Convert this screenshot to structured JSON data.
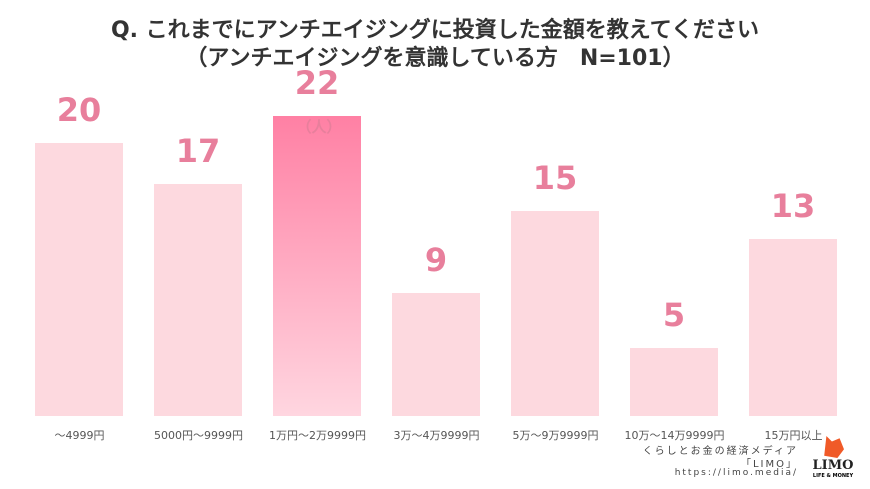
{
  "chart_data": {
    "type": "bar",
    "title": "Q. これまでにアンチエイジングに投資した金額を教えてください",
    "subtitle": "（アンチエイジングを意識している方　N=101）",
    "unit": "（人）",
    "categories": [
      "～4999円",
      "5000円～9999円",
      "1万円～2万9999円",
      "3万～4万9999円",
      "5万～9万9999円",
      "10万～14万9999円",
      "15万円以上"
    ],
    "values": [
      20,
      17,
      22,
      9,
      15,
      5,
      13
    ],
    "highlight_index": 2,
    "ylim": [
      0,
      22
    ],
    "colors": {
      "bar": "#fdd9df",
      "highlight": "#ff80a4",
      "label": "#e87f9c"
    }
  },
  "credit": {
    "line1": "くらしとお金の経済メディア",
    "line2": "「LIMO」",
    "url": "https://limo.media/",
    "logo": "LIMO",
    "logo_sub": "LIFE & MONEY"
  }
}
